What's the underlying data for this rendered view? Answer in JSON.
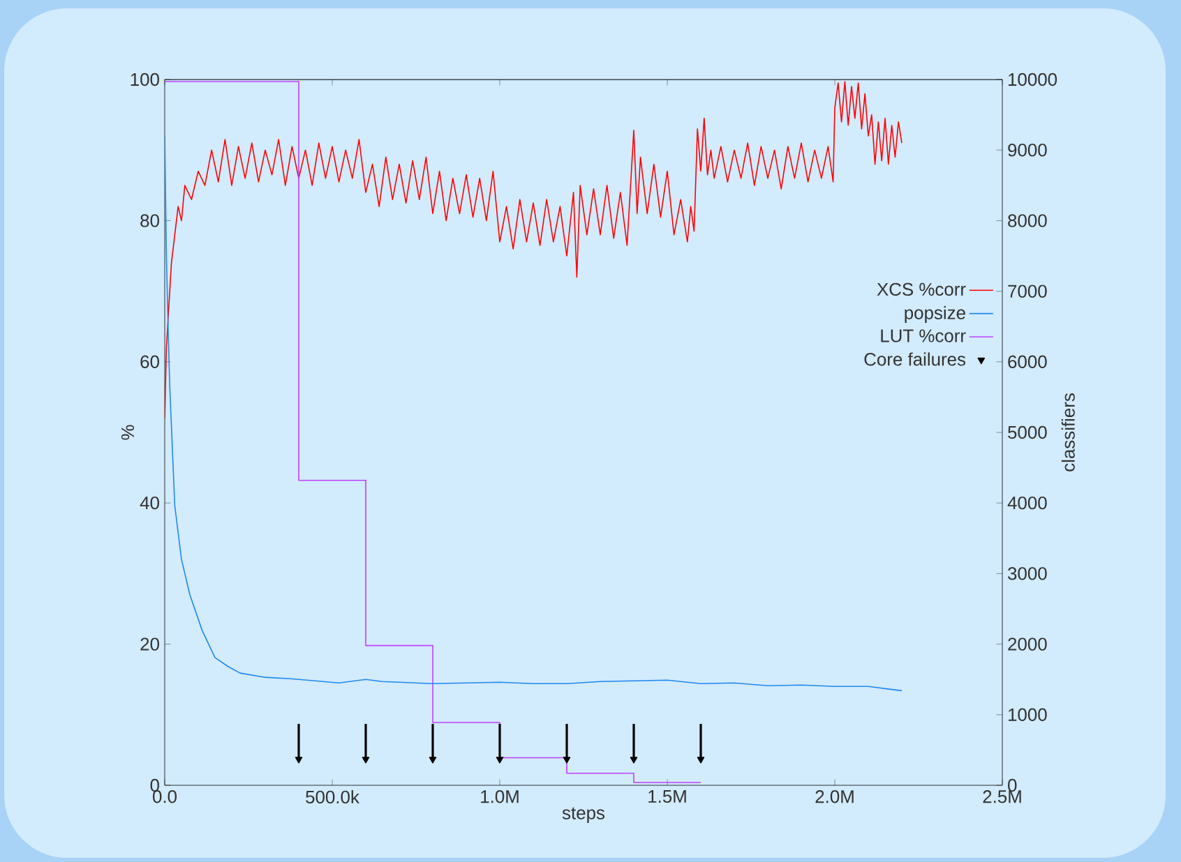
{
  "chart_data": {
    "type": "line",
    "xlabel": "steps",
    "ylabel": "%",
    "y2label": "classifiers",
    "xlim": [
      0,
      2500000
    ],
    "xticks": [
      {
        "value": 0,
        "label": "0.0"
      },
      {
        "value": 500000,
        "label": "500.0k"
      },
      {
        "value": 1000000,
        "label": "1.0M"
      },
      {
        "value": 1500000,
        "label": "1.5M"
      },
      {
        "value": 2000000,
        "label": "2.0M"
      },
      {
        "value": 2500000,
        "label": "2.5M"
      }
    ],
    "ylim": [
      0,
      100
    ],
    "yticks": [
      0,
      20,
      40,
      60,
      80,
      100
    ],
    "y2lim": [
      0,
      10000
    ],
    "y2ticks": [
      0,
      1000,
      2000,
      3000,
      4000,
      5000,
      6000,
      7000,
      8000,
      9000,
      10000
    ],
    "legend": "right",
    "series": [
      {
        "name": "XCS %corr",
        "color": "#ff0000",
        "x": [
          0,
          5000,
          10000,
          15000,
          20000,
          30000,
          40000,
          50000,
          60000,
          80000,
          100000,
          120000,
          140000,
          160000,
          180000,
          200000,
          220000,
          240000,
          260000,
          280000,
          300000,
          320000,
          340000,
          360000,
          380000,
          400000,
          420000,
          440000,
          460000,
          480000,
          500000,
          520000,
          540000,
          560000,
          580000,
          600000,
          620000,
          640000,
          660000,
          680000,
          700000,
          720000,
          740000,
          760000,
          780000,
          800000,
          820000,
          840000,
          860000,
          880000,
          900000,
          920000,
          940000,
          960000,
          980000,
          1000000,
          1020000,
          1040000,
          1060000,
          1080000,
          1100000,
          1120000,
          1140000,
          1160000,
          1180000,
          1200000,
          1220000,
          1230000,
          1240000,
          1260000,
          1280000,
          1300000,
          1320000,
          1340000,
          1360000,
          1380000,
          1400000,
          1410000,
          1420000,
          1440000,
          1460000,
          1480000,
          1500000,
          1520000,
          1540000,
          1560000,
          1570000,
          1580000,
          1590000,
          1600000,
          1610000,
          1620000,
          1630000,
          1640000,
          1660000,
          1680000,
          1700000,
          1720000,
          1740000,
          1760000,
          1780000,
          1800000,
          1820000,
          1840000,
          1860000,
          1880000,
          1900000,
          1920000,
          1940000,
          1960000,
          1980000,
          1995000,
          2000000,
          2010000,
          2020000,
          2030000,
          2040000,
          2050000,
          2060000,
          2070000,
          2080000,
          2090000,
          2100000,
          2110000,
          2120000,
          2130000,
          2140000,
          2150000,
          2160000,
          2170000,
          2180000,
          2190000,
          2200000
        ],
        "values": [
          52,
          62,
          66,
          70,
          74,
          78,
          82,
          80,
          85,
          83,
          87,
          85,
          90,
          85.5,
          91.5,
          85,
          90.5,
          86,
          91,
          85.5,
          90,
          86.5,
          91.5,
          85,
          90.5,
          86,
          90,
          85,
          91,
          86,
          90.5,
          85.5,
          90,
          86,
          91.5,
          84,
          88,
          82,
          89,
          83,
          88,
          82.5,
          88.5,
          83,
          89,
          81,
          87,
          80,
          86,
          81,
          86.5,
          80.5,
          86,
          80,
          87,
          77,
          82,
          76,
          83,
          77,
          82.5,
          76.5,
          83,
          77,
          82,
          75,
          84,
          72,
          85,
          78,
          84.5,
          78,
          85,
          77.5,
          84,
          76.5,
          92.8,
          81,
          89,
          81,
          88,
          80.5,
          87,
          78,
          83,
          77,
          82,
          78.5,
          93,
          87,
          94.5,
          86.5,
          90,
          86,
          90.5,
          85.5,
          90,
          86,
          91,
          85,
          90.5,
          86,
          90,
          84.5,
          90.5,
          86,
          91,
          85.5,
          90,
          86,
          90.5,
          85.5,
          96,
          99.5,
          94,
          99.7,
          93.5,
          99,
          94.5,
          99.5,
          93,
          98,
          92,
          95,
          88,
          94,
          88.5,
          94.5,
          88,
          93.5,
          89,
          94,
          91
        ]
      },
      {
        "name": "popsize",
        "axis": "y2",
        "color": "#1e88f0",
        "x": [
          0,
          5000,
          10000,
          15000,
          30000,
          50000,
          75000,
          112000,
          150000,
          190000,
          225000,
          300000,
          376000,
          450000,
          520000,
          600000,
          650000,
          700000,
          800000,
          900000,
          1000000,
          1100000,
          1200000,
          1300000,
          1400000,
          1500000,
          1600000,
          1700000,
          1800000,
          1900000,
          2000000,
          2100000,
          2200000
        ],
        "values": [
          9200,
          7500,
          6500,
          5650,
          3960,
          3200,
          2700,
          2190,
          1810,
          1680,
          1590,
          1530,
          1510,
          1480,
          1450,
          1500,
          1470,
          1460,
          1440,
          1450,
          1460,
          1440,
          1440,
          1470,
          1480,
          1490,
          1440,
          1450,
          1410,
          1420,
          1400,
          1400,
          1340
        ]
      },
      {
        "name": "LUT %corr",
        "type": "step",
        "color": "#c040ff",
        "x": [
          0,
          400000,
          600000,
          800000,
          1000000,
          1200000,
          1400000,
          1600000
        ],
        "values": [
          99.7,
          43.2,
          19.8,
          8.9,
          3.9,
          1.7,
          0.4,
          0.4
        ]
      },
      {
        "name": "Core failures",
        "type": "scatter",
        "color": "#000000",
        "x": [
          400000,
          600000,
          800000,
          1000000,
          1200000,
          1400000,
          1600000
        ],
        "values": [
          3.7,
          3.7,
          3.7,
          3.7,
          3.7,
          3.7,
          3.7
        ],
        "marker": "triangle",
        "errors": [
          [
            3.7,
            8.7
          ],
          [
            3.7,
            8.7
          ],
          [
            3.7,
            8.7
          ],
          [
            3.7,
            8.7
          ],
          [
            3.7,
            8.7
          ],
          [
            3.7,
            8.7
          ],
          [
            3.7,
            8.7
          ]
        ]
      }
    ]
  }
}
